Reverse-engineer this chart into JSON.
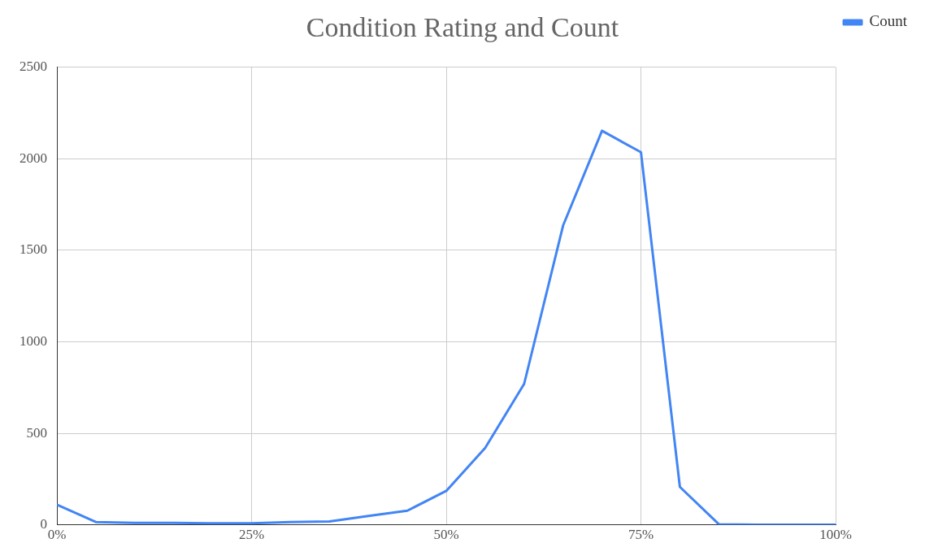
{
  "chart_data": {
    "type": "line",
    "title": "Condition Rating and Count",
    "x": [
      0,
      5,
      10,
      15,
      20,
      25,
      30,
      35,
      40,
      45,
      50,
      55,
      60,
      65,
      70,
      75,
      80,
      85,
      90,
      95,
      100
    ],
    "series": [
      {
        "name": "Count",
        "color": "#4285f4",
        "values": [
          110,
          15,
          10,
          10,
          8,
          8,
          15,
          18,
          48,
          77,
          185,
          420,
          770,
          1635,
          2153,
          2036,
          207,
          3,
          0,
          0,
          0
        ]
      }
    ],
    "xlim": [
      0,
      100
    ],
    "xticks": [
      {
        "value": 0,
        "label": "0%"
      },
      {
        "value": 25,
        "label": "25%"
      },
      {
        "value": 50,
        "label": "50%"
      },
      {
        "value": 75,
        "label": "75%"
      },
      {
        "value": 100,
        "label": "100%"
      }
    ],
    "ylim": [
      0,
      2500
    ],
    "yticks": [
      0,
      500,
      1000,
      1500,
      2000,
      2500
    ],
    "grid": true,
    "legend": "top right",
    "marker": "none",
    "line_style": "solid"
  }
}
